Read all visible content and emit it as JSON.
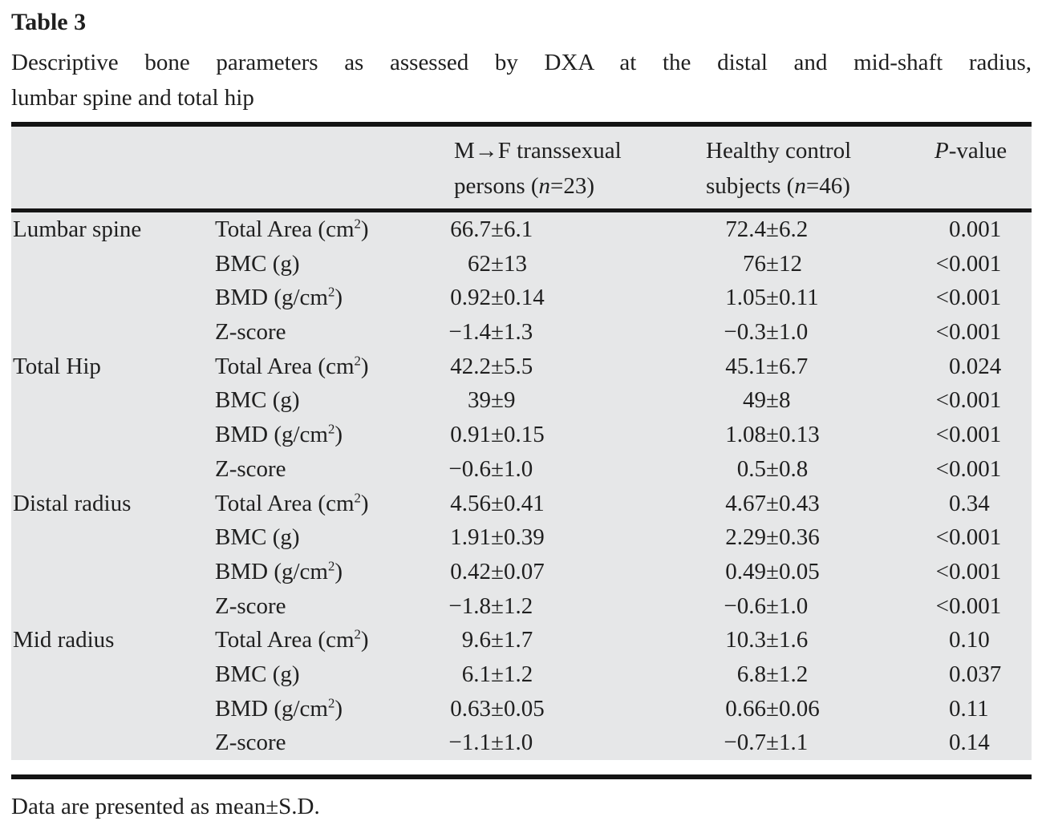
{
  "title": "Table 3",
  "caption_line1": "Descriptive bone parameters as assessed by DXA at the distal and mid-shaft radius,",
  "caption_line2": "lumbar spine and total hip",
  "table": {
    "header": {
      "mtf_line1": "M→F transsexual",
      "mtf_line2": "persons (*n*=23)",
      "control_line1": "Healthy control",
      "control_line2": "subjects (*n*=46)",
      "pvalue": "*P*-value"
    },
    "groups": [
      {
        "group": "Lumbar spine",
        "rows": [
          {
            "parameter": "Total Area (cm^2)",
            "mtf": "66.7±6.1",
            "control": "72.4±6.2",
            "p": "0.001"
          },
          {
            "parameter": "BMC (g)",
            "mtf": "62±13",
            "control": "76±12",
            "p": "<0.001"
          },
          {
            "parameter": "BMD (g/cm^2)",
            "mtf": "0.92±0.14",
            "control": "1.05±0.11",
            "p": "<0.001"
          },
          {
            "parameter": "Z-score",
            "mtf": "−1.4±1.3",
            "control": "−0.3±1.0",
            "p": "<0.001"
          }
        ]
      },
      {
        "group": "Total Hip",
        "rows": [
          {
            "parameter": "Total Area (cm^2)",
            "mtf": "42.2±5.5",
            "control": "45.1±6.7",
            "p": "0.024"
          },
          {
            "parameter": "BMC (g)",
            "mtf": "39±9",
            "control": "49±8",
            "p": "<0.001"
          },
          {
            "parameter": "BMD (g/cm^2)",
            "mtf": "0.91±0.15",
            "control": "1.08±0.13",
            "p": "<0.001"
          },
          {
            "parameter": "Z-score",
            "mtf": "−0.6±1.0",
            "control": "0.5±0.8",
            "p": "<0.001"
          }
        ]
      },
      {
        "group": "Distal radius",
        "rows": [
          {
            "parameter": "Total Area (cm^2)",
            "mtf": "4.56±0.41",
            "control": "4.67±0.43",
            "p": "0.34"
          },
          {
            "parameter": "BMC (g)",
            "mtf": "1.91±0.39",
            "control": "2.29±0.36",
            "p": "<0.001"
          },
          {
            "parameter": "BMD (g/cm^2)",
            "mtf": "0.42±0.07",
            "control": "0.49±0.05",
            "p": "<0.001"
          },
          {
            "parameter": "Z-score",
            "mtf": "−1.8±1.2",
            "control": "−0.6±1.0",
            "p": "<0.001"
          }
        ]
      },
      {
        "group": "Mid radius",
        "rows": [
          {
            "parameter": "Total Area (cm^2)",
            "mtf": "9.6±1.7",
            "control": "10.3±1.6",
            "p": "0.10"
          },
          {
            "parameter": "BMC (g)",
            "mtf": "6.1±1.2",
            "control": "6.8±1.2",
            "p": "0.037"
          },
          {
            "parameter": "BMD (g/cm^2)",
            "mtf": "0.63±0.05",
            "control": "0.66±0.06",
            "p": "0.11"
          },
          {
            "parameter": "Z-score",
            "mtf": "−1.1±1.0",
            "control": "−0.7±1.1",
            "p": "0.14"
          }
        ]
      }
    ]
  },
  "footnote": "Data are presented as mean±S.D.",
  "colors": {
    "panel_gray": "#e6e7e8",
    "rule_black": "#141414",
    "text": "#1f1f1f"
  }
}
